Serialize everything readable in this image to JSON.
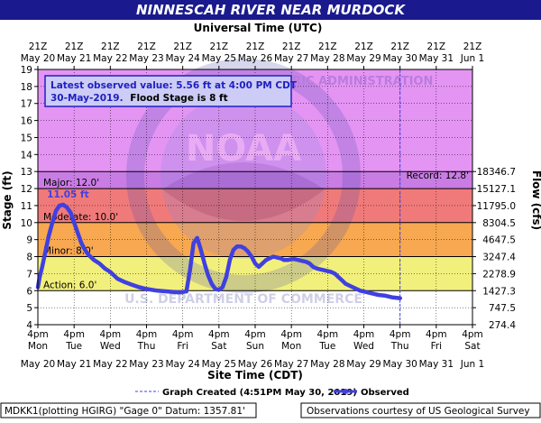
{
  "chart_data": {
    "type": "line",
    "title": "NINNESCAH RIVER NEAR MURDOCK",
    "top_axis_title": "Universal Time (UTC)",
    "xlabel": "Site Time (CDT)",
    "ylabel": "Stage (ft)",
    "y2label": "Flow (cfs)",
    "ylim": [
      4,
      19
    ],
    "y_ticks": [
      4,
      5,
      6,
      7,
      8,
      9,
      10,
      11,
      12,
      13,
      14,
      15,
      16,
      17,
      18,
      19
    ],
    "x_days": 12,
    "x_ticks_bottom": [
      {
        "time": "4pm",
        "day": "Mon",
        "date": "May 20"
      },
      {
        "time": "4pm",
        "day": "Tue",
        "date": "May 21"
      },
      {
        "time": "4pm",
        "day": "Wed",
        "date": "May 22"
      },
      {
        "time": "4pm",
        "day": "Thu",
        "date": "May 23"
      },
      {
        "time": "4pm",
        "day": "Fri",
        "date": "May 24"
      },
      {
        "time": "4pm",
        "day": "Sat",
        "date": "May 25"
      },
      {
        "time": "4pm",
        "day": "Sun",
        "date": "May 26"
      },
      {
        "time": "4pm",
        "day": "Mon",
        "date": "May 27"
      },
      {
        "time": "4pm",
        "day": "Tue",
        "date": "May 28"
      },
      {
        "time": "4pm",
        "day": "Wed",
        "date": "May 29"
      },
      {
        "time": "4pm",
        "day": "Thu",
        "date": "May 30"
      },
      {
        "time": "4pm",
        "day": "Fri",
        "date": "May 31"
      },
      {
        "time": "4pm",
        "day": "Sat",
        "date": "Jun 1"
      }
    ],
    "x_ticks_top": [
      {
        "time": "21Z",
        "date": "May 20"
      },
      {
        "time": "21Z",
        "date": "May 21"
      },
      {
        "time": "21Z",
        "date": "May 22"
      },
      {
        "time": "21Z",
        "date": "May 23"
      },
      {
        "time": "21Z",
        "date": "May 24"
      },
      {
        "time": "21Z",
        "date": "May 25"
      },
      {
        "time": "21Z",
        "date": "May 26"
      },
      {
        "time": "21Z",
        "date": "May 27"
      },
      {
        "time": "21Z",
        "date": "May 28"
      },
      {
        "time": "21Z",
        "date": "May 29"
      },
      {
        "time": "21Z",
        "date": "May 30"
      },
      {
        "time": "21Z",
        "date": "May 31"
      },
      {
        "time": "21Z",
        "date": "Jun 1"
      }
    ],
    "flow_ticks": [
      {
        "stage": 4,
        "flow": "274.4"
      },
      {
        "stage": 5,
        "flow": "747.5"
      },
      {
        "stage": 6,
        "flow": "1427.3"
      },
      {
        "stage": 7,
        "flow": "2278.9"
      },
      {
        "stage": 8,
        "flow": "3247.4"
      },
      {
        "stage": 9,
        "flow": "4647.5"
      },
      {
        "stage": 10,
        "flow": "8304.5"
      },
      {
        "stage": 11,
        "flow": "11795.0"
      },
      {
        "stage": 12,
        "flow": "15127.1"
      },
      {
        "stage": 13,
        "flow": "18346.7"
      }
    ],
    "zones": [
      {
        "name": "record",
        "from": 13,
        "to": 19,
        "color": "#e494f3"
      },
      {
        "name": "major",
        "from": 12,
        "to": 13,
        "color": "#c97ce4"
      },
      {
        "name": "moderate",
        "from": 10,
        "to": 12,
        "color": "#f07a7a"
      },
      {
        "name": "minor",
        "from": 8,
        "to": 10,
        "color": "#f7a850"
      },
      {
        "name": "action",
        "from": 6,
        "to": 8,
        "color": "#f2f07c"
      },
      {
        "name": "normal",
        "from": 4,
        "to": 6,
        "color": "#ffffff"
      }
    ],
    "thresholds": [
      {
        "label": "Major: 12.0'",
        "stage": 12.0
      },
      {
        "label": "Moderate: 10.0'",
        "stage": 10.0
      },
      {
        "label": "Minor: 8.0'",
        "stage": 8.0
      },
      {
        "label": "Action: 6.0'",
        "stage": 6.0
      }
    ],
    "record": {
      "label": "Record: 12.8'",
      "stage": 12.8
    },
    "peak_label": {
      "text": "11.05 ft",
      "x": 0.9,
      "stage": 11.05
    },
    "graph_created_x": 10.0,
    "series": [
      {
        "name": "Observed",
        "color": "#4040e0",
        "x": [
          0.0,
          0.05,
          0.12,
          0.2,
          0.3,
          0.4,
          0.5,
          0.6,
          0.7,
          0.8,
          0.9,
          1.0,
          1.1,
          1.2,
          1.3,
          1.4,
          1.55,
          1.7,
          1.85,
          2.0,
          2.2,
          2.4,
          2.6,
          2.8,
          3.0,
          3.3,
          3.6,
          3.9,
          4.1,
          4.2,
          4.3,
          4.4,
          4.5,
          4.6,
          4.7,
          4.8,
          4.9,
          5.0,
          5.1,
          5.2,
          5.3,
          5.4,
          5.5,
          5.6,
          5.7,
          5.8,
          5.9,
          6.0,
          6.1,
          6.2,
          6.3,
          6.4,
          6.5,
          6.6,
          6.7,
          6.8,
          6.9,
          7.0,
          7.1,
          7.2,
          7.3,
          7.4,
          7.5,
          7.6,
          7.7,
          7.8,
          7.9,
          8.0,
          8.1,
          8.2,
          8.3,
          8.4,
          8.5,
          8.6,
          8.7,
          8.8,
          8.9,
          9.0,
          9.2,
          9.4,
          9.6,
          9.8,
          10.0
        ],
        "y": [
          6.2,
          6.8,
          7.4,
          8.2,
          9.2,
          10.0,
          10.7,
          11.0,
          11.05,
          10.9,
          10.6,
          10.0,
          9.4,
          8.8,
          8.4,
          8.1,
          7.8,
          7.6,
          7.3,
          7.1,
          6.7,
          6.5,
          6.35,
          6.2,
          6.1,
          6.0,
          5.95,
          5.9,
          5.95,
          7.2,
          8.8,
          9.1,
          8.4,
          7.6,
          6.9,
          6.4,
          6.1,
          6.05,
          6.2,
          6.8,
          7.8,
          8.4,
          8.6,
          8.6,
          8.5,
          8.3,
          8.0,
          7.6,
          7.4,
          7.6,
          7.8,
          7.9,
          8.0,
          7.95,
          7.9,
          7.8,
          7.8,
          7.85,
          7.85,
          7.8,
          7.75,
          7.7,
          7.6,
          7.4,
          7.3,
          7.25,
          7.2,
          7.15,
          7.1,
          7.0,
          6.8,
          6.6,
          6.4,
          6.3,
          6.2,
          6.1,
          6.0,
          5.95,
          5.85,
          5.75,
          5.7,
          5.6,
          5.56
        ]
      }
    ]
  },
  "latest_box": {
    "line1": "Latest observed value: 5.56 ft at 4:00 PM CDT",
    "line2_date": "30-May-2019.",
    "line2_flood": "Flood Stage is 8 ft"
  },
  "legend": {
    "graph_created": "Graph Created (4:51PM May 30, 2019)",
    "observed": "Observed"
  },
  "footer": {
    "left": "MDKK1(plotting HGIRG) \"Gage 0\" Datum: 1357.81'",
    "right": "Observations courtesy of US Geological Survey"
  },
  "watermark": {
    "ring_text": "NATIONAL OCEANIC AND ATMOSPHERIC ADMINISTRATION",
    "bottom_text": "U.S. DEPARTMENT OF COMMERCE",
    "center_text": "NOAA"
  },
  "colors": {
    "title_bar": "#1a1a8e",
    "plot_border": "#000000",
    "grid": "#000000",
    "observed": "#4040e0",
    "box_border": "#2020c0",
    "box_text": "#2020c0"
  }
}
